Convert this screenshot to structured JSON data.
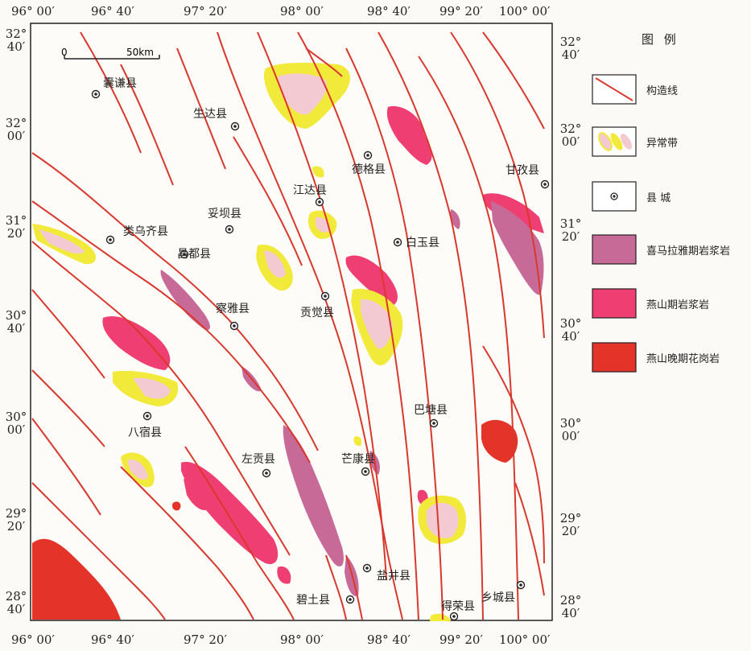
{
  "map": {
    "scale": {
      "zero": "0",
      "distance": "50km"
    },
    "counties": [
      {
        "name": "囊谦县"
      },
      {
        "name": "生达县"
      },
      {
        "name": "德格县"
      },
      {
        "name": "甘孜县"
      },
      {
        "name": "江达县"
      },
      {
        "name": "类乌齐县"
      },
      {
        "name": "妥坝县"
      },
      {
        "name": "昌都县"
      },
      {
        "name": "白玉县"
      },
      {
        "name": "贡觉县"
      },
      {
        "name": "察雅县"
      },
      {
        "name": "八宿县"
      },
      {
        "name": "巴塘县"
      },
      {
        "name": "左贡县"
      },
      {
        "name": "芒康县"
      },
      {
        "name": "盐井县"
      },
      {
        "name": "碧土县"
      },
      {
        "name": "得荣县"
      },
      {
        "name": "乡城县"
      }
    ],
    "longitude_ticks": [
      "96° 00′",
      "96° 40′",
      "97° 20′",
      "98° 00′",
      "98° 40′",
      "99° 20′",
      "100° 00′"
    ],
    "latitude_ticks": [
      {
        "deg": "32°",
        "min": "40′"
      },
      {
        "deg": "32°",
        "min": "00′"
      },
      {
        "deg": "31°",
        "min": "20′"
      },
      {
        "deg": "30°",
        "min": "40′"
      },
      {
        "deg": "30°",
        "min": "00′"
      },
      {
        "deg": "29°",
        "min": "20′"
      },
      {
        "deg": "28°",
        "min": "40′"
      }
    ]
  },
  "legend": {
    "title": "图 例",
    "items": [
      {
        "label": "构造线",
        "color": "#d9382c"
      },
      {
        "label": "异常带",
        "color": "#f2ea3a"
      },
      {
        "label": "县 城",
        "color": "#333333"
      },
      {
        "label": "喜马拉雅期岩浆岩",
        "color": "#c86a98"
      },
      {
        "label": "燕山期岩浆岩",
        "color": "#ef3f72"
      },
      {
        "label": "燕山晚期花岗岩",
        "color": "#e4342a"
      }
    ]
  },
  "colors": {
    "fault": "#d9382c",
    "himalayan": "#c86a98",
    "yanshan": "#ef3f72",
    "granite": "#e4342a",
    "anomaly": "#f2ea3a",
    "anomaly_core": "#f3c9d2"
  }
}
